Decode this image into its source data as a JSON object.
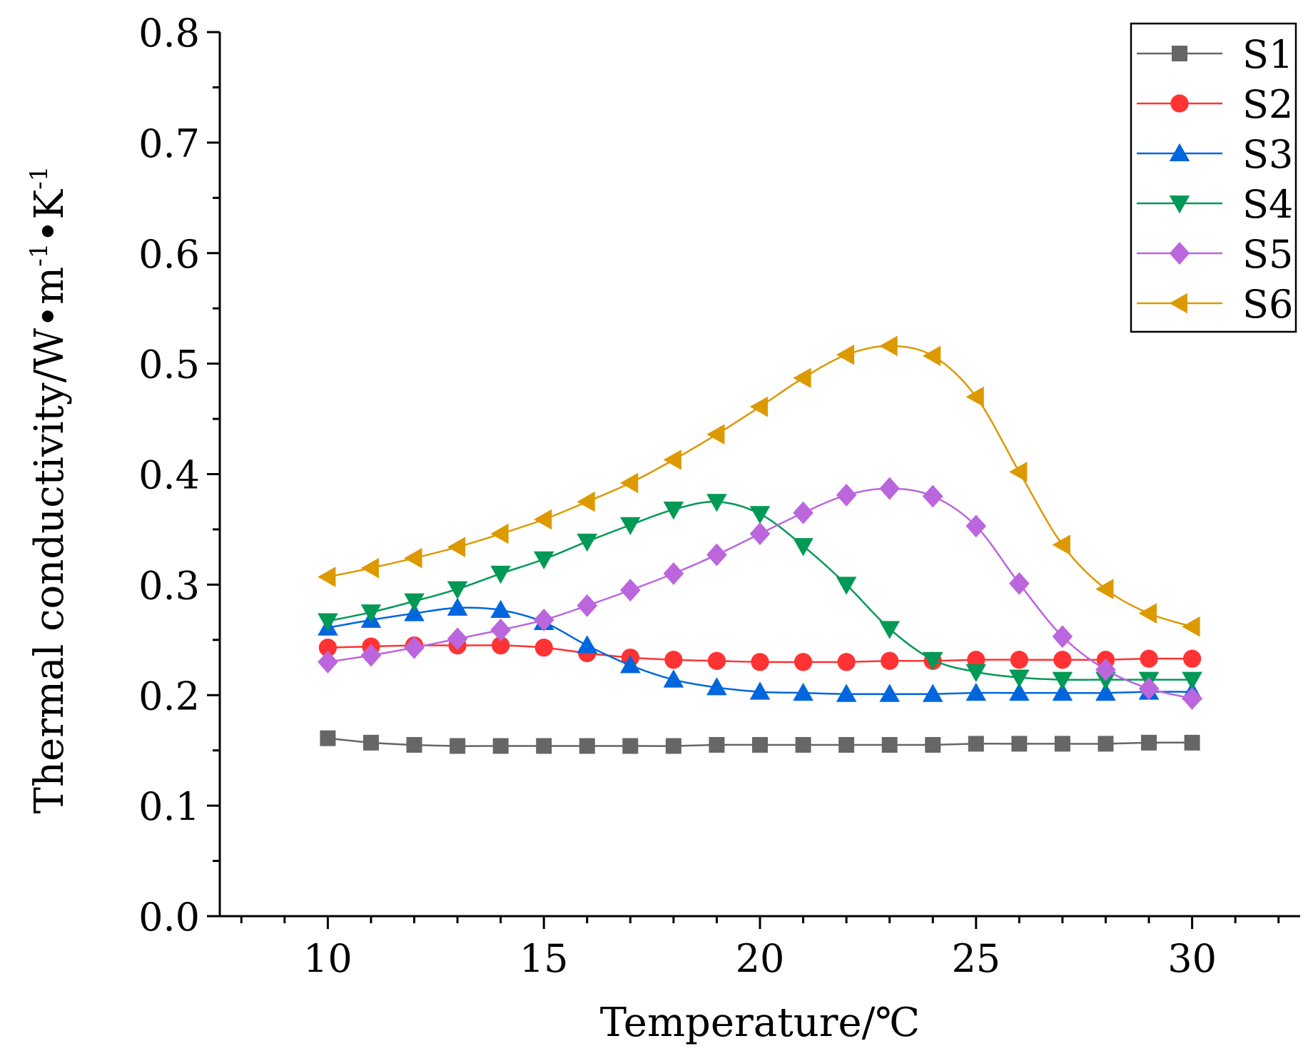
{
  "chart_data": {
    "type": "line",
    "xlabel": "Temperature/℃",
    "ylabel": "Thermal conductivity/W•m",
    "ylabel_sup1": "-1",
    "ylabel_mid": "•K",
    "ylabel_sup2": "-1",
    "xlim": [
      7.5,
      32.5
    ],
    "ylim": [
      0.0,
      0.8
    ],
    "xticks": [
      10,
      15,
      20,
      25,
      30
    ],
    "xtick_labels": [
      "10",
      "15",
      "20",
      "25",
      "30"
    ],
    "yticks": [
      0.0,
      0.1,
      0.2,
      0.3,
      0.4,
      0.5,
      0.6,
      0.7,
      0.8
    ],
    "ytick_labels": [
      "0.0",
      "0.1",
      "0.2",
      "0.3",
      "0.4",
      "0.5",
      "0.6",
      "0.7",
      "0.8"
    ],
    "grid": false,
    "legend_position": "top-right",
    "x": [
      10,
      11,
      12,
      13,
      14,
      15,
      16,
      17,
      18,
      19,
      20,
      21,
      22,
      23,
      24,
      25,
      26,
      27,
      28,
      29,
      30
    ],
    "series": [
      {
        "name": "S1",
        "color": "#666666",
        "marker": "square",
        "values": [
          0.161,
          0.157,
          0.155,
          0.154,
          0.154,
          0.154,
          0.154,
          0.154,
          0.154,
          0.155,
          0.155,
          0.155,
          0.155,
          0.155,
          0.155,
          0.156,
          0.156,
          0.156,
          0.156,
          0.157,
          0.157
        ]
      },
      {
        "name": "S2",
        "color": "#ff3333",
        "marker": "circle",
        "values": [
          0.243,
          0.244,
          0.245,
          0.245,
          0.245,
          0.243,
          0.238,
          0.234,
          0.232,
          0.231,
          0.23,
          0.23,
          0.23,
          0.231,
          0.231,
          0.232,
          0.232,
          0.232,
          0.232,
          0.233,
          0.233
        ]
      },
      {
        "name": "S3",
        "color": "#0066dd",
        "marker": "triangle-up",
        "values": [
          0.261,
          0.268,
          0.274,
          0.279,
          0.277,
          0.266,
          0.245,
          0.227,
          0.214,
          0.207,
          0.203,
          0.202,
          0.201,
          0.201,
          0.201,
          0.202,
          0.202,
          0.202,
          0.202,
          0.203,
          0.203
        ]
      },
      {
        "name": "S4",
        "color": "#009955",
        "marker": "triangle-down",
        "values": [
          0.267,
          0.275,
          0.285,
          0.296,
          0.31,
          0.323,
          0.339,
          0.354,
          0.368,
          0.375,
          0.364,
          0.335,
          0.3,
          0.26,
          0.232,
          0.221,
          0.216,
          0.214,
          0.214,
          0.214,
          0.214
        ]
      },
      {
        "name": "S5",
        "color": "#bb66dd",
        "marker": "diamond",
        "values": [
          0.23,
          0.236,
          0.243,
          0.251,
          0.259,
          0.268,
          0.281,
          0.295,
          0.31,
          0.327,
          0.346,
          0.365,
          0.381,
          0.387,
          0.38,
          0.353,
          0.301,
          0.253,
          0.223,
          0.206,
          0.197
        ]
      },
      {
        "name": "S6",
        "color": "#dd9900",
        "marker": "triangle-left",
        "values": [
          0.307,
          0.315,
          0.324,
          0.334,
          0.346,
          0.359,
          0.375,
          0.392,
          0.413,
          0.436,
          0.461,
          0.487,
          0.508,
          0.516,
          0.507,
          0.47,
          0.402,
          0.336,
          0.296,
          0.274,
          0.262
        ]
      }
    ]
  }
}
